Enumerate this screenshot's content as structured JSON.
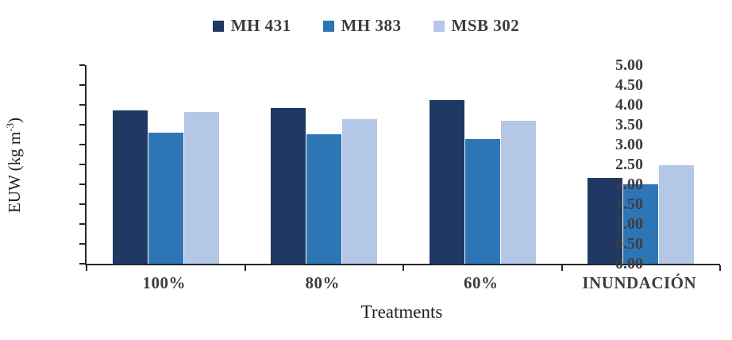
{
  "chart_data": {
    "type": "bar",
    "title": "",
    "categories": [
      "100%",
      "80%",
      "60%",
      "INUNDACIÓN"
    ],
    "series": [
      {
        "name": "MH 431",
        "color": "#1F3864",
        "values": [
          3.86,
          3.93,
          4.12,
          2.17
        ]
      },
      {
        "name": "MH 383",
        "color": "#2E75B6",
        "values": [
          3.3,
          3.27,
          3.15,
          2.01
        ]
      },
      {
        "name": "MSB 302",
        "color": "#B4C7E7",
        "values": [
          3.82,
          3.65,
          3.6,
          2.48
        ]
      }
    ],
    "xlabel": "Treatments",
    "ylabel": {
      "prefix": "EUW (kg m",
      "sup": "-3",
      "suffix": ")"
    },
    "ylim": [
      0,
      5
    ],
    "ytick_step": 0.5,
    "yticks": [
      "0.00",
      "0.50",
      "1.00",
      "1.50",
      "2.00",
      "2.50",
      "3.00",
      "3.50",
      "4.00",
      "4.50",
      "5.00"
    ],
    "legend_position": "top-center",
    "grid": false,
    "axis_color": "#262626",
    "label_color": "#3d3d3d"
  }
}
